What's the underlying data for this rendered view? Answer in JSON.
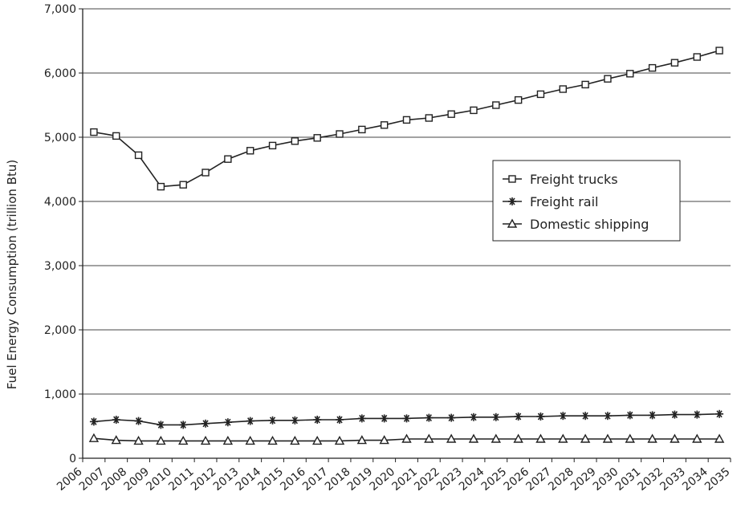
{
  "chart_data": {
    "type": "line",
    "title": "",
    "xlabel": "",
    "ylabel": "Fuel Energy Consumption (trillion Btu)",
    "ylim": [
      0,
      7000
    ],
    "y_ticks": [
      "0",
      "1,000",
      "2,000",
      "3,000",
      "4,000",
      "5,000",
      "6,000",
      "7,000"
    ],
    "grid": "horizontal",
    "legend_position": "center-right",
    "x_tick_labels": [
      "2006",
      "2007",
      "2008",
      "2009",
      "2010",
      "2011",
      "2012",
      "2013",
      "2014",
      "2015",
      "2016",
      "2017",
      "2018",
      "2019",
      "2020",
      "2021",
      "2022",
      "2023",
      "2024",
      "2025",
      "2026",
      "2027",
      "2028",
      "2029",
      "2030",
      "2031",
      "2032",
      "2033",
      "2034",
      "2035"
    ],
    "x": [
      2006,
      2007,
      2008,
      2009,
      2010,
      2011,
      2012,
      2013,
      2014,
      2015,
      2016,
      2017,
      2018,
      2019,
      2020,
      2021,
      2022,
      2023,
      2024,
      2025,
      2026,
      2027,
      2028,
      2029,
      2030,
      2031,
      2032,
      2033,
      2034
    ],
    "series": [
      {
        "name": "Freight trucks",
        "marker": "square",
        "values": [
          5080,
          5020,
          4720,
          4230,
          4260,
          4450,
          4660,
          4790,
          4870,
          4940,
          4990,
          5050,
          5120,
          5190,
          5270,
          5300,
          5360,
          5420,
          5500,
          5580,
          5670,
          5750,
          5820,
          5910,
          5990,
          6080,
          6160,
          6250,
          6350
        ]
      },
      {
        "name": "Freight rail",
        "marker": "asterisk",
        "values": [
          570,
          600,
          580,
          520,
          520,
          540,
          560,
          580,
          590,
          590,
          600,
          600,
          620,
          620,
          620,
          630,
          630,
          640,
          640,
          650,
          650,
          660,
          660,
          660,
          670,
          670,
          680,
          680,
          690
        ]
      },
      {
        "name": "Domestic shipping",
        "marker": "triangle",
        "values": [
          310,
          280,
          270,
          270,
          270,
          270,
          270,
          270,
          270,
          270,
          270,
          270,
          280,
          280,
          300,
          300,
          300,
          300,
          300,
          300,
          300,
          300,
          300,
          300,
          300,
          300,
          300,
          300,
          300
        ]
      }
    ]
  }
}
